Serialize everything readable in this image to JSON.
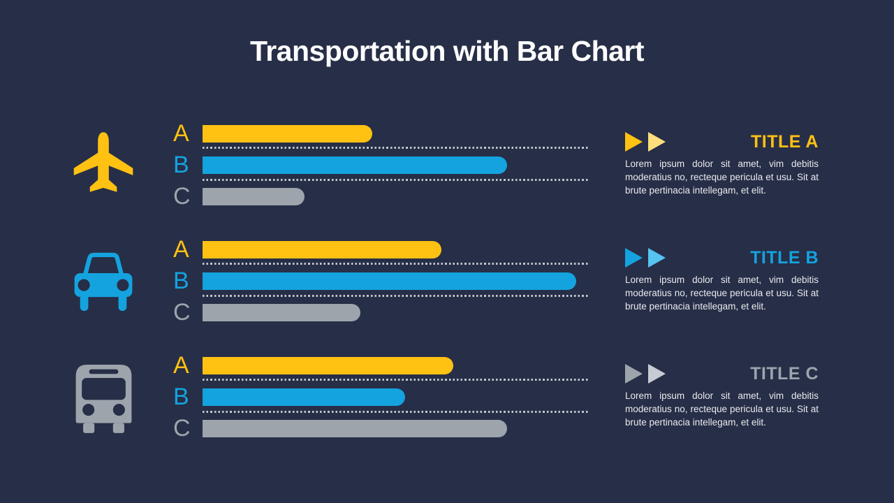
{
  "slide": {
    "title": "Transportation with Bar Chart"
  },
  "colors": {
    "bg": "#272E47",
    "title": "#FFFFFF",
    "text": "#E9EBEF",
    "dots": "#C2C7CF",
    "yellow": "#FFC112",
    "yellow_light": "#FFDE7D",
    "blue": "#14A3DF",
    "blue_light": "#56C3F0",
    "gray": "#9DA4AC",
    "gray_light": "#C7CCD4"
  },
  "chart_data": {
    "type": "bar",
    "orientation": "horizontal",
    "title": "Transportation with Bar Chart",
    "categories": [
      "A",
      "B",
      "C"
    ],
    "xlim": [
      0,
      100
    ],
    "unit": "percent of dotted guide length (estimated from pixels)",
    "grid": "dotted horizontal separators between bars",
    "legend": "none",
    "series_colors": [
      "#FFC112",
      "#14A3DF",
      "#9DA4AC"
    ],
    "groups": [
      {
        "name": "airplane",
        "values": [
          44,
          79,
          26.5
        ]
      },
      {
        "name": "car",
        "values": [
          62,
          97,
          41
        ]
      },
      {
        "name": "bus",
        "values": [
          65,
          52.5,
          79
        ]
      }
    ]
  },
  "sections": [
    {
      "icon": "airplane",
      "title": "TITLE A",
      "body": "Lorem ipsum dolor sit amet, vim debitis moderatius no, recteque pericula et usu. Sit at brute pertinacia intellegam, et elit.",
      "bars": [
        {
          "label": "A",
          "color": "yellow"
        },
        {
          "label": "B",
          "color": "blue"
        },
        {
          "label": "C",
          "color": "gray"
        }
      ]
    },
    {
      "icon": "car",
      "title": "TITLE B",
      "body": "Lorem ipsum dolor sit amet, vim debitis moderatius no, recteque pericula et usu. Sit at brute pertinacia intellegam, et elit.",
      "bars": [
        {
          "label": "A",
          "color": "yellow"
        },
        {
          "label": "B",
          "color": "blue"
        },
        {
          "label": "C",
          "color": "gray"
        }
      ]
    },
    {
      "icon": "bus",
      "title": "TITLE C",
      "body": "Lorem ipsum dolor sit amet, vim debitis moderatius no, recteque pericula et usu. Sit at brute pertinacia intellegam, et elit.",
      "bars": [
        {
          "label": "A",
          "color": "yellow"
        },
        {
          "label": "B",
          "color": "blue"
        },
        {
          "label": "C",
          "color": "gray"
        }
      ]
    }
  ]
}
